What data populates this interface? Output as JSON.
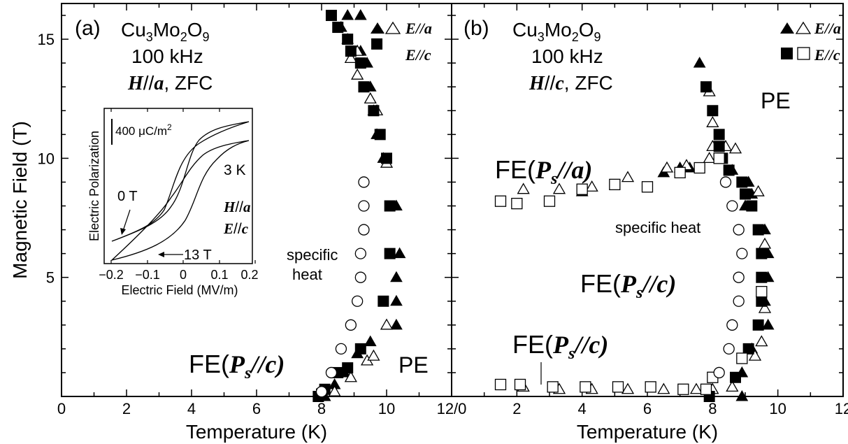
{
  "chart_data": [
    {
      "type": "scatter",
      "panel_label": "(a)",
      "compound": {
        "base1": "Cu",
        "sub1": "3",
        "base2": "Mo",
        "sub2": "2",
        "base3": "O",
        "sub3": "9"
      },
      "frequency": "100 kHz",
      "condition": {
        "field": "H",
        "sep": "//",
        "axis": "a",
        "rest": ", ZFC"
      },
      "xlabel": "Temperature (K)",
      "ylabel": "Magnetic Field (T)",
      "xlim": [
        0,
        12
      ],
      "ylim": [
        0,
        16.5
      ],
      "xticks": [
        "0",
        "2",
        "4",
        "6",
        "8",
        "10",
        "12/0"
      ],
      "yticks": [
        "5",
        "10",
        "15"
      ],
      "legend": [
        {
          "markers": "filled-triangle open-triangle",
          "label": "E//a"
        },
        {
          "markers": "filled-square",
          "label": "E//c"
        }
      ],
      "phase_labels": {
        "fe": {
          "pre": "FE(",
          "P": "P",
          "s": "s",
          "post": "//c)"
        },
        "pe": "PE",
        "specific_heat_1": "specific",
        "specific_heat_2": "heat"
      },
      "series": [
        {
          "name": "E//a",
          "marker": "filled-triangle",
          "points": [
            [
              8.1,
              0
            ],
            [
              8.4,
              0.5
            ],
            [
              8.7,
              1
            ],
            [
              9.1,
              1.8
            ],
            [
              9.5,
              2.3
            ],
            [
              10.3,
              3
            ],
            [
              10.3,
              4
            ],
            [
              10.3,
              5
            ],
            [
              10.4,
              6
            ],
            [
              10.3,
              8
            ],
            [
              9.9,
              10
            ],
            [
              9.7,
              11
            ],
            [
              9.6,
              12
            ],
            [
              9.5,
              13
            ],
            [
              9.4,
              14
            ],
            [
              9.2,
              14.5
            ],
            [
              8.8,
              15
            ],
            [
              8.6,
              15.5
            ],
            [
              8.8,
              16
            ],
            [
              9.2,
              16
            ]
          ]
        },
        {
          "name": "E//a",
          "marker": "open-triangle",
          "points": [
            [
              8.4,
              0.2
            ],
            [
              8.9,
              0.8
            ],
            [
              9.4,
              1.5
            ],
            [
              9.6,
              1.7
            ],
            [
              10,
              3
            ],
            [
              10,
              9.8
            ],
            [
              9.7,
              12
            ],
            [
              9.5,
              12.5
            ],
            [
              9.1,
              13.5
            ],
            [
              8.9,
              14.2
            ],
            [
              9.1,
              14.5
            ]
          ]
        },
        {
          "name": "E//c",
          "marker": "filled-square",
          "points": [
            [
              7.9,
              0
            ],
            [
              8.0,
              0.1
            ],
            [
              8.1,
              0.3
            ],
            [
              8.5,
              1.0
            ],
            [
              8.8,
              1.2
            ],
            [
              9.2,
              2
            ],
            [
              9.9,
              4
            ],
            [
              10.1,
              6
            ],
            [
              10.1,
              8
            ],
            [
              10.0,
              10
            ],
            [
              9.8,
              11
            ],
            [
              9.6,
              12
            ],
            [
              9.3,
              13
            ],
            [
              9.2,
              14
            ],
            [
              8.9,
              14.5
            ],
            [
              8.8,
              15
            ],
            [
              8.5,
              15.5
            ],
            [
              8.3,
              16
            ],
            [
              9.7,
              14.8
            ]
          ]
        },
        {
          "name": "specific heat",
          "marker": "open-circle",
          "points": [
            [
              8.0,
              0.2
            ],
            [
              8.3,
              1
            ],
            [
              8.6,
              2
            ],
            [
              8.9,
              3
            ],
            [
              9.1,
              4
            ],
            [
              9.2,
              5
            ],
            [
              9.2,
              6
            ],
            [
              9.3,
              7
            ],
            [
              9.3,
              8
            ],
            [
              9.3,
              9
            ]
          ]
        }
      ],
      "inset": {
        "xlabel": "Electric Field (MV/m)",
        "ylabel": "Electric Polarization",
        "xticks": [
          "−0.2",
          "−0.1",
          "0",
          "0.1",
          "0.2"
        ],
        "xlim": [
          -0.22,
          0.22
        ],
        "scale_label": {
          "pre": "400 μC/m",
          "sup": "2"
        },
        "temperature": "3 K",
        "field_dir": {
          "field": "H",
          "sep": "//",
          "axis": "a"
        },
        "e_dir": {
          "field": "E",
          "sep": "//",
          "axis": "c"
        },
        "label_0T": "0 T",
        "label_13T": "13 T"
      }
    },
    {
      "type": "scatter",
      "panel_label": "(b)",
      "compound": {
        "base1": "Cu",
        "sub1": "3",
        "base2": "Mo",
        "sub2": "2",
        "base3": "O",
        "sub3": "9"
      },
      "frequency": "100 kHz",
      "condition": {
        "field": "H",
        "sep": "//",
        "axis": "c",
        "rest": ", ZFC"
      },
      "xlabel": "Temperature (K)",
      "ylabel": "",
      "xlim": [
        0,
        12
      ],
      "ylim": [
        0,
        16.5
      ],
      "xticks": [
        "2",
        "4",
        "6",
        "8",
        "10",
        "12"
      ],
      "legend": [
        {
          "markers": "filled-triangle open-triangle",
          "label": "E//a"
        },
        {
          "markers": "filled-square open-square",
          "label": "E//c"
        }
      ],
      "phase_labels": {
        "pe": "PE",
        "fe_a": {
          "pre": "FE(",
          "P": "P",
          "s": "s",
          "post": "//a)"
        },
        "fe_c_mid": {
          "pre": "FE(",
          "P": "P",
          "s": "s",
          "post": "//c)"
        },
        "fe_c_low": {
          "pre": "FE(",
          "P": "P",
          "s": "s",
          "post": "//c)"
        },
        "specific_heat": "specific heat"
      },
      "series": [
        {
          "name": "E//a",
          "marker": "filled-triangle",
          "points": [
            [
              4.0,
              8.6
            ],
            [
              6.5,
              9.4
            ],
            [
              7.0,
              9.6
            ],
            [
              7.3,
              9.6
            ],
            [
              7.6,
              14
            ],
            [
              8.6,
              9.5
            ],
            [
              9.1,
              9.0
            ],
            [
              9.2,
              8.5
            ],
            [
              9.0,
              8.0
            ],
            [
              9.6,
              7.0
            ],
            [
              9.7,
              6.0
            ],
            [
              9.7,
              5.0
            ],
            [
              9.6,
              4.0
            ],
            [
              9.7,
              3.0
            ],
            [
              9.2,
              2.0
            ],
            [
              8.9,
              1.0
            ],
            [
              8.9,
              0
            ]
          ]
        },
        {
          "name": "E//a",
          "marker": "open-triangle",
          "points": [
            [
              2.2,
              8.7
            ],
            [
              3.3,
              8.7
            ],
            [
              4.3,
              8.8
            ],
            [
              5.4,
              9.2
            ],
            [
              6.6,
              9.6
            ],
            [
              7.2,
              9.7
            ],
            [
              7.9,
              10
            ],
            [
              8.0,
              10.5
            ],
            [
              8.4,
              10.5
            ],
            [
              8.0,
              11.5
            ],
            [
              7.9,
              12.8
            ],
            [
              8.7,
              10.4
            ],
            [
              9.4,
              8.6
            ],
            [
              9.6,
              6.4
            ],
            [
              9.6,
              3.7
            ],
            [
              9.5,
              2.3
            ],
            [
              9.3,
              1.7
            ],
            [
              8.6,
              0.4
            ],
            [
              2.2,
              0.4
            ],
            [
              3.3,
              0.3
            ],
            [
              4.3,
              0.3
            ],
            [
              5.4,
              0.3
            ],
            [
              6.5,
              0.3
            ],
            [
              7.5,
              0.3
            ],
            [
              8.0,
              0.3
            ]
          ]
        },
        {
          "name": "E//c",
          "marker": "filled-square",
          "points": [
            [
              7.8,
              13
            ],
            [
              8.0,
              12
            ],
            [
              8.2,
              11
            ],
            [
              8.2,
              10.5
            ],
            [
              8.3,
              10
            ],
            [
              8.5,
              9.5
            ],
            [
              8.9,
              9.0
            ],
            [
              9.0,
              8.5
            ],
            [
              9.2,
              8.0
            ],
            [
              9.4,
              7.0
            ],
            [
              9.5,
              6.0
            ],
            [
              9.5,
              5.0
            ],
            [
              9.5,
              4.0
            ],
            [
              9.4,
              3.0
            ],
            [
              9.1,
              2.0
            ],
            [
              8.7,
              0.8
            ],
            [
              7.9,
              0
            ]
          ]
        },
        {
          "name": "E//c",
          "marker": "open-square",
          "points": [
            [
              1.5,
              8.2
            ],
            [
              2.0,
              8.1
            ],
            [
              3.0,
              8.2
            ],
            [
              4.0,
              8.7
            ],
            [
              5.0,
              8.9
            ],
            [
              6.0,
              8.8
            ],
            [
              7.0,
              9.4
            ],
            [
              7.6,
              9.6
            ],
            [
              8.2,
              10
            ],
            [
              9.5,
              4.4
            ],
            [
              8.9,
              1.6
            ],
            [
              8.0,
              0.8
            ],
            [
              1.5,
              0.5
            ],
            [
              2.1,
              0.5
            ],
            [
              3.1,
              0.4
            ],
            [
              4.1,
              0.4
            ],
            [
              5.1,
              0.4
            ],
            [
              6.1,
              0.4
            ],
            [
              7.1,
              0.3
            ],
            [
              7.8,
              0.3
            ]
          ]
        },
        {
          "name": "specific heat",
          "marker": "open-circle",
          "points": [
            [
              8.2,
              1
            ],
            [
              8.5,
              2
            ],
            [
              8.6,
              3
            ],
            [
              8.8,
              4
            ],
            [
              8.8,
              5
            ],
            [
              8.9,
              6
            ],
            [
              8.8,
              7
            ],
            [
              8.6,
              8
            ],
            [
              8.4,
              9
            ]
          ]
        }
      ]
    }
  ]
}
